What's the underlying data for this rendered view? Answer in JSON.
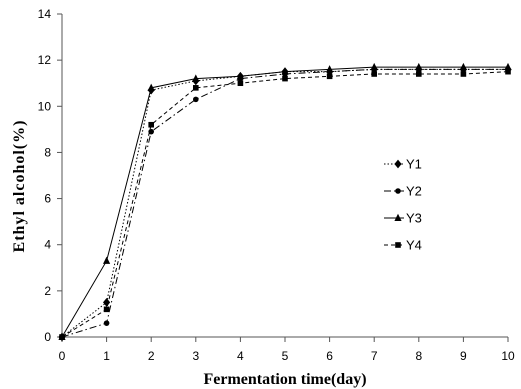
{
  "chart_data": {
    "type": "line",
    "title": "",
    "xlabel": "Fermentation time(day)",
    "ylabel": "Ethyl alcohol(%)",
    "x": [
      0,
      1,
      2,
      3,
      4,
      5,
      6,
      7,
      8,
      9,
      10
    ],
    "xlim": [
      0,
      10
    ],
    "ylim": [
      0,
      14
    ],
    "xticks": [
      "0",
      "1",
      "2",
      "3",
      "4",
      "5",
      "6",
      "7",
      "8",
      "9",
      "10"
    ],
    "yticks": [
      "0",
      "2",
      "4",
      "6",
      "8",
      "10",
      "12",
      "14"
    ],
    "grid": false,
    "legend_position": "right",
    "series": [
      {
        "name": "Y1",
        "marker": "diamond",
        "dash": "dotted",
        "color": "#000000",
        "values": [
          0,
          1.5,
          10.7,
          11.1,
          11.3,
          11.5,
          11.5,
          11.6,
          11.6,
          11.6,
          11.6
        ]
      },
      {
        "name": "Y2",
        "marker": "circle",
        "dash": "dashdot",
        "color": "#000000",
        "values": [
          0,
          0.6,
          8.9,
          10.3,
          11.2,
          11.4,
          11.5,
          11.6,
          11.6,
          11.6,
          11.6
        ]
      },
      {
        "name": "Y3",
        "marker": "triangle",
        "dash": "solid",
        "color": "#000000",
        "values": [
          0,
          3.3,
          10.8,
          11.2,
          11.3,
          11.5,
          11.6,
          11.7,
          11.7,
          11.7,
          11.7
        ]
      },
      {
        "name": "Y4",
        "marker": "square",
        "dash": "dashed",
        "color": "#000000",
        "values": [
          0,
          1.2,
          9.2,
          10.8,
          11.0,
          11.2,
          11.3,
          11.4,
          11.4,
          11.4,
          11.5
        ]
      }
    ]
  }
}
